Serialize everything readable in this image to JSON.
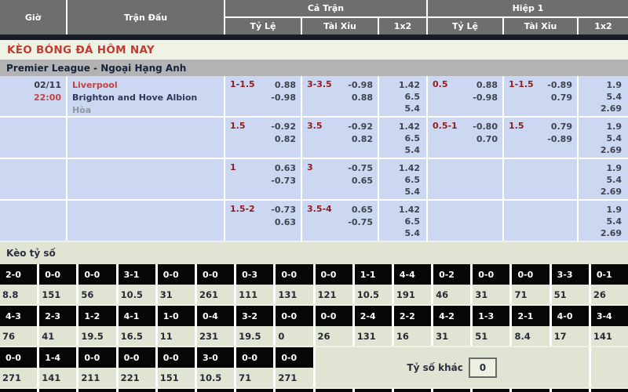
{
  "header": {
    "col_time": "Giờ",
    "col_match": "Trận Đấu",
    "group_full": "Cả Trận",
    "group_half": "Hiệp 1",
    "sub_handicap": "Tỷ Lệ",
    "sub_overunder": "Tài Xỉu",
    "sub_1x2": "1x2"
  },
  "title": "KÈO BÓNG ĐÁ HÔM NAY",
  "league": "Premier League - Ngoại Hạng Anh",
  "match": {
    "date": "02/11",
    "time": "22:00",
    "home": "Liverpool",
    "away": "Brighton and Hove Albion",
    "draw": "Hòa"
  },
  "odds_rows": [
    {
      "ft_hdp": {
        "line": "1-1.5",
        "v1": "0.88",
        "v2": "-0.98"
      },
      "ft_ou": {
        "line": "3-3.5",
        "v1": "-0.98",
        "v2": "0.88"
      },
      "ft_1x2": [
        "1.42",
        "6.5",
        "5.4"
      ],
      "h1_hdp": {
        "line": "0.5",
        "v1": "0.88",
        "v2": "-0.98"
      },
      "h1_ou": {
        "line": "1-1.5",
        "v1": "-0.89",
        "v2": "0.79"
      },
      "h1_1x2": [
        "1.9",
        "5.4",
        "2.69"
      ]
    },
    {
      "ft_hdp": {
        "line": "1.5",
        "v1": "-0.92",
        "v2": "0.82"
      },
      "ft_ou": {
        "line": "3.5",
        "v1": "-0.92",
        "v2": "0.82"
      },
      "ft_1x2": [
        "1.42",
        "6.5",
        "5.4"
      ],
      "h1_hdp": {
        "line": "0.5-1",
        "v1": "-0.80",
        "v2": "0.70"
      },
      "h1_ou": {
        "line": "1.5",
        "v1": "0.79",
        "v2": "-0.89"
      },
      "h1_1x2": [
        "1.9",
        "5.4",
        "2.69"
      ]
    },
    {
      "ft_hdp": {
        "line": "1",
        "v1": "0.63",
        "v2": "-0.73"
      },
      "ft_ou": {
        "line": "3",
        "v1": "-0.75",
        "v2": "0.65"
      },
      "ft_1x2": [
        "1.42",
        "6.5",
        "5.4"
      ],
      "h1_hdp": null,
      "h1_ou": null,
      "h1_1x2": [
        "1.9",
        "5.4",
        "2.69"
      ]
    },
    {
      "ft_hdp": {
        "line": "1.5-2",
        "v1": "-0.73",
        "v2": "0.63"
      },
      "ft_ou": {
        "line": "3.5-4",
        "v1": "0.65",
        "v2": "-0.75"
      },
      "ft_1x2": [
        "1.42",
        "6.5",
        "5.4"
      ],
      "h1_hdp": null,
      "h1_ou": null,
      "h1_1x2": [
        "1.9",
        "5.4",
        "2.69"
      ]
    }
  ],
  "score_section": {
    "title": "Kèo tỷ số",
    "rows": [
      [
        {
          "score": "2-0",
          "odd": "8.8"
        },
        {
          "score": "0-0",
          "odd": "151"
        },
        {
          "score": "0-0",
          "odd": "56"
        },
        {
          "score": "3-1",
          "odd": "10.5"
        },
        {
          "score": "0-0",
          "odd": "31"
        },
        {
          "score": "0-0",
          "odd": "261"
        },
        {
          "score": "0-3",
          "odd": "111"
        },
        {
          "score": "0-0",
          "odd": "131"
        },
        {
          "score": "0-0",
          "odd": "121"
        },
        {
          "score": "1-1",
          "odd": "10.5"
        },
        {
          "score": "4-4",
          "odd": "191"
        },
        {
          "score": "0-2",
          "odd": "46"
        },
        {
          "score": "0-0",
          "odd": "31"
        },
        {
          "score": "0-0",
          "odd": "71"
        },
        {
          "score": "3-3",
          "odd": "51"
        },
        {
          "score": "0-1",
          "odd": "26"
        }
      ],
      [
        {
          "score": "4-3",
          "odd": "76"
        },
        {
          "score": "2-3",
          "odd": "41"
        },
        {
          "score": "1-2",
          "odd": "19.5"
        },
        {
          "score": "4-1",
          "odd": "16.5"
        },
        {
          "score": "1-0",
          "odd": "11"
        },
        {
          "score": "0-4",
          "odd": "231"
        },
        {
          "score": "3-2",
          "odd": "19.5"
        },
        {
          "score": "0-0",
          "odd": "0"
        },
        {
          "score": "0-0",
          "odd": "26"
        },
        {
          "score": "2-4",
          "odd": "131"
        },
        {
          "score": "2-2",
          "odd": "16"
        },
        {
          "score": "4-2",
          "odd": "31"
        },
        {
          "score": "1-3",
          "odd": "51"
        },
        {
          "score": "2-1",
          "odd": "8.4"
        },
        {
          "score": "4-0",
          "odd": "17"
        },
        {
          "score": "3-4",
          "odd": "141"
        }
      ],
      [
        {
          "score": "0-0",
          "odd": "271"
        },
        {
          "score": "1-4",
          "odd": "141"
        },
        {
          "score": "0-0",
          "odd": "211"
        },
        {
          "score": "0-0",
          "odd": "221"
        },
        {
          "score": "0-0",
          "odd": "151"
        },
        {
          "score": "3-0",
          "odd": "10.5"
        },
        {
          "score": "0-0",
          "odd": "71"
        },
        {
          "score": "0-0",
          "odd": "271"
        }
      ]
    ],
    "other_label": "Tỷ số khác",
    "other_value": "0"
  },
  "colors": {
    "accent_red": "#c23a32",
    "handicap_red": "#8f1d1d",
    "odds_row_bg": "#ccd7f1",
    "score_section_bg": "#e0e4d2",
    "score_cell_bg": "#060606",
    "header_bg": "#6e6e6e"
  }
}
